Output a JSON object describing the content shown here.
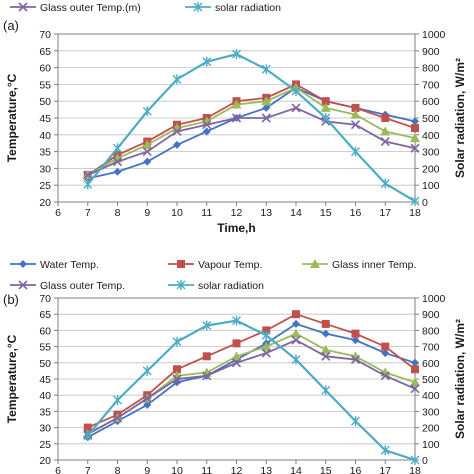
{
  "chart_data": [
    {
      "type": "line",
      "panel_label": "(a)",
      "xlabel": "Time,h",
      "ylabel": "Temperature,°C",
      "y2label": "Solar radiation, W/m²",
      "xlim": [
        6,
        18
      ],
      "ylim": [
        20,
        70
      ],
      "y2lim": [
        0,
        1000
      ],
      "x_ticks": [
        6,
        7,
        8,
        9,
        10,
        11,
        12,
        13,
        14,
        15,
        16,
        17,
        18
      ],
      "y_ticks": [
        20,
        25,
        30,
        35,
        40,
        45,
        50,
        55,
        60,
        65,
        70
      ],
      "y2_ticks": [
        0,
        100,
        200,
        300,
        400,
        500,
        600,
        700,
        800,
        900,
        1000
      ],
      "legend_items": [
        "Glass outer  Temp.(m)",
        "solar radiation"
      ],
      "x": [
        7,
        8,
        9,
        10,
        11,
        12,
        13,
        14,
        15,
        16,
        17,
        18
      ],
      "series": [
        {
          "key": "water",
          "color": "#4472c4",
          "marker": "diamond",
          "axis": "left",
          "values": [
            27,
            29,
            32,
            37,
            41,
            45,
            48,
            54,
            50,
            48,
            46,
            44
          ]
        },
        {
          "key": "vapour",
          "color": "#c0504d",
          "marker": "square",
          "axis": "left",
          "values": [
            28,
            34,
            38,
            43,
            45,
            50,
            51,
            55,
            50,
            48,
            45,
            42
          ]
        },
        {
          "key": "glass_inner",
          "color": "#9bbb59",
          "marker": "triangle",
          "axis": "left",
          "values": [
            28,
            33,
            37,
            42,
            44,
            49,
            50,
            54,
            48,
            46,
            41,
            39
          ]
        },
        {
          "key": "glass_outer",
          "color": "#8064a2",
          "marker": "x",
          "axis": "left",
          "values": [
            28,
            32,
            35,
            41,
            43,
            45,
            45,
            48,
            44,
            43,
            38,
            36
          ]
        },
        {
          "key": "solar",
          "color": "#4bacc6",
          "marker": "star",
          "axis": "right",
          "values": [
            105,
            320,
            540,
            730,
            835,
            880,
            790,
            660,
            500,
            300,
            110,
            5
          ]
        }
      ]
    },
    {
      "type": "line",
      "panel_label": "(b)",
      "xlabel": "",
      "ylabel": "Temperature,°C",
      "y2label": "Solar radiation, W/m²",
      "xlim": [
        6,
        18
      ],
      "ylim": [
        20,
        70
      ],
      "y2lim": [
        0,
        1000
      ],
      "x_ticks": [
        6,
        7,
        8,
        9,
        10,
        11,
        12,
        13,
        14,
        15,
        16,
        17,
        18
      ],
      "y_ticks": [
        20,
        25,
        30,
        35,
        40,
        45,
        50,
        55,
        60,
        65,
        70
      ],
      "y2_ticks": [
        0,
        100,
        200,
        300,
        400,
        500,
        600,
        700,
        800,
        900,
        1000
      ],
      "legend_items": [
        "Water Temp.",
        "Vapour Temp.",
        "Glass inner Temp.",
        "Glass outer  Temp.",
        "solar radiation"
      ],
      "x": [
        7,
        8,
        9,
        10,
        11,
        12,
        13,
        14,
        15,
        16,
        17,
        18
      ],
      "series": [
        {
          "key": "water",
          "name": "Water Temp.",
          "color": "#4472c4",
          "marker": "diamond",
          "axis": "left",
          "values": [
            27,
            32,
            37,
            44,
            46,
            51,
            56,
            62,
            59,
            57,
            53,
            50
          ]
        },
        {
          "key": "vapour",
          "name": "Vapour Temp.",
          "color": "#c0504d",
          "marker": "square",
          "axis": "left",
          "values": [
            30,
            34,
            40,
            48,
            52,
            56,
            60,
            65,
            62,
            59,
            55,
            48
          ]
        },
        {
          "key": "glass_inner",
          "name": "Glass inner Temp.",
          "color": "#9bbb59",
          "marker": "triangle",
          "axis": "left",
          "values": [
            28,
            33,
            39,
            46,
            47,
            52,
            55,
            59,
            54,
            52,
            47,
            44
          ]
        },
        {
          "key": "glass_outer",
          "name": "Glass outer  Temp.",
          "color": "#8064a2",
          "marker": "x",
          "axis": "left",
          "values": [
            28,
            33,
            39,
            45,
            46,
            50,
            53,
            57,
            52,
            51,
            46,
            42
          ]
        },
        {
          "key": "solar",
          "name": "solar radiation",
          "color": "#4bacc6",
          "marker": "star",
          "axis": "right",
          "values": [
            150,
            370,
            550,
            730,
            830,
            860,
            770,
            620,
            430,
            240,
            60,
            0
          ]
        }
      ]
    }
  ]
}
